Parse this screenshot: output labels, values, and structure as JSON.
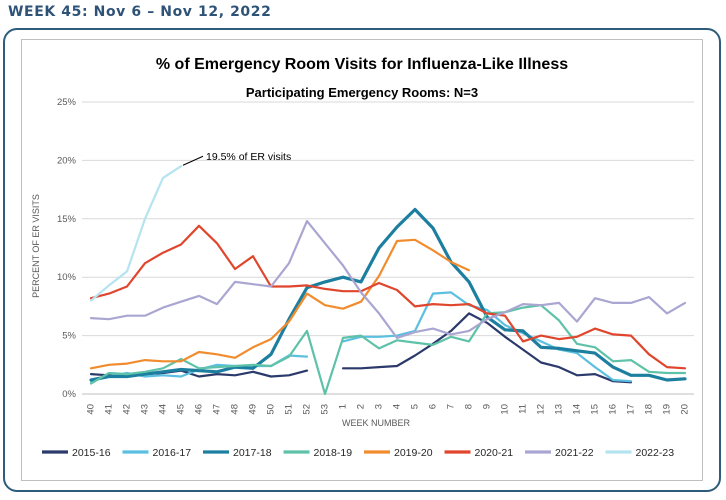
{
  "header": {
    "week_label": "WEEK 45: Nov 6 – Nov 12, 2022"
  },
  "chart_data": {
    "type": "line",
    "title": "% of Emergency Room Visits for Influenza-Like Illness",
    "subtitle": "Participating Emergency Rooms: N=3",
    "xlabel": "WEEK NUMBER",
    "ylabel": "PERCENT OF ER VISITS",
    "x": [
      "40",
      "41",
      "42",
      "43",
      "44",
      "45",
      "46",
      "47",
      "48",
      "49",
      "50",
      "51",
      "52",
      "53",
      "1",
      "2",
      "3",
      "4",
      "5",
      "6",
      "7",
      "8",
      "9",
      "10",
      "11",
      "12",
      "13",
      "14",
      "15",
      "16",
      "17",
      "18",
      "19",
      "20"
    ],
    "ylim": [
      0,
      25
    ],
    "yticks": [
      0,
      5,
      10,
      15,
      20,
      25
    ],
    "ytick_labels": [
      "0%",
      "5%",
      "10%",
      "15%",
      "20%",
      "25%"
    ],
    "grid": "horizontal",
    "legend_position": "bottom",
    "annotation": {
      "text": "19.5% of ER visits",
      "series": "2022-23",
      "x": "45",
      "y": 19.5
    },
    "series": [
      {
        "name": "2015-16",
        "color": "#2b3a6b",
        "values": [
          1.7,
          1.6,
          1.5,
          1.7,
          1.8,
          2.0,
          1.5,
          1.7,
          1.6,
          1.9,
          1.5,
          1.6,
          2.0,
          null,
          2.2,
          2.2,
          2.3,
          2.4,
          3.3,
          4.3,
          5.4,
          6.9,
          6.1,
          4.9,
          3.8,
          2.7,
          2.3,
          1.6,
          1.7,
          1.1,
          1.0,
          null,
          null,
          null
        ]
      },
      {
        "name": "2016-17",
        "color": "#5bc0e0",
        "values": [
          1.1,
          1.5,
          1.8,
          1.5,
          1.6,
          1.5,
          2.1,
          2.5,
          2.4,
          2.4,
          2.4,
          3.3,
          3.2,
          null,
          4.5,
          4.9,
          4.9,
          5.0,
          5.4,
          8.6,
          8.7,
          7.6,
          7.2,
          5.9,
          5.2,
          4.5,
          3.8,
          3.5,
          2.3,
          1.2,
          1.1,
          null,
          null,
          null
        ]
      },
      {
        "name": "2017-18",
        "color": "#1d7fa0",
        "values": [
          1.2,
          1.5,
          1.5,
          1.7,
          1.9,
          2.1,
          2.0,
          1.9,
          2.3,
          2.2,
          3.4,
          6.4,
          9.1,
          9.6,
          10.0,
          9.6,
          12.5,
          14.3,
          15.8,
          14.2,
          11.3,
          9.6,
          6.6,
          5.5,
          5.4,
          4.0,
          3.9,
          3.7,
          3.5,
          2.3,
          1.6,
          1.6,
          1.2,
          1.3
        ]
      },
      {
        "name": "2018-19",
        "color": "#5ec2a8",
        "values": [
          0.9,
          1.8,
          1.7,
          1.9,
          2.2,
          3.0,
          2.2,
          2.3,
          2.4,
          2.5,
          2.4,
          3.2,
          5.4,
          0.0,
          4.8,
          5.0,
          3.9,
          4.6,
          4.4,
          4.2,
          4.9,
          4.5,
          6.9,
          7.0,
          7.4,
          7.6,
          6.3,
          4.3,
          4.0,
          2.8,
          2.9,
          1.9,
          1.8,
          1.8
        ]
      },
      {
        "name": "2019-20",
        "color": "#f18c2e",
        "values": [
          2.2,
          2.5,
          2.6,
          2.9,
          2.8,
          2.8,
          3.6,
          3.4,
          3.1,
          4.0,
          4.7,
          6.2,
          8.6,
          7.6,
          7.3,
          7.9,
          10.1,
          13.1,
          13.2,
          12.3,
          11.3,
          10.6,
          null,
          null,
          null,
          null,
          null,
          null,
          null,
          null,
          null,
          null,
          null,
          null
        ]
      },
      {
        "name": "2020-21",
        "color": "#e0462d",
        "values": [
          8.2,
          8.6,
          9.2,
          11.2,
          12.1,
          12.8,
          14.4,
          12.9,
          10.7,
          11.8,
          9.2,
          9.2,
          9.3,
          9.0,
          8.8,
          8.8,
          9.5,
          8.9,
          7.5,
          7.7,
          7.6,
          7.7,
          6.9,
          6.7,
          4.5,
          5.0,
          4.7,
          4.9,
          5.6,
          5.1,
          5.0,
          3.4,
          2.3,
          2.2
        ]
      },
      {
        "name": "2021-22",
        "color": "#aaa6d2",
        "values": [
          6.5,
          6.4,
          6.7,
          6.7,
          7.4,
          7.9,
          8.4,
          7.7,
          9.6,
          9.4,
          9.2,
          11.2,
          14.8,
          12.9,
          11.0,
          8.7,
          6.9,
          4.8,
          5.3,
          5.6,
          5.1,
          5.4,
          6.4,
          7.0,
          7.7,
          7.6,
          7.8,
          6.2,
          8.2,
          7.8,
          7.8,
          8.3,
          6.9,
          7.8
        ]
      },
      {
        "name": "2022-23",
        "color": "#b5e3f0",
        "values": [
          8.0,
          9.3,
          10.5,
          15.0,
          18.5,
          19.5,
          null,
          null,
          null,
          null,
          null,
          null,
          null,
          null,
          null,
          null,
          null,
          null,
          null,
          null,
          null,
          null,
          null,
          null,
          null,
          null,
          null,
          null,
          null,
          null,
          null,
          null,
          null,
          null
        ]
      }
    ]
  }
}
